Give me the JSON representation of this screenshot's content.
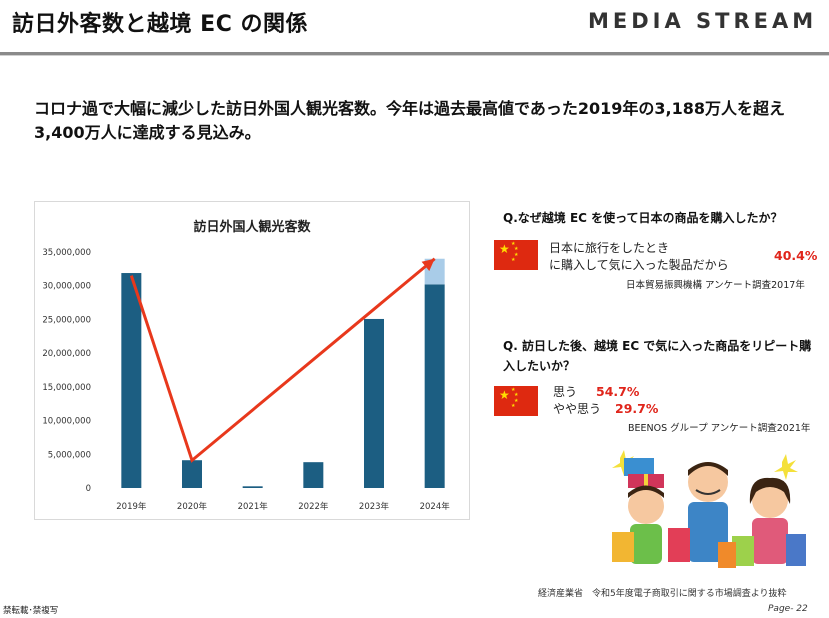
{
  "header": {
    "title": "訪日外客数と越境 EC の関係",
    "logo": "MEDIA STREAM"
  },
  "headline": "コロナ過で大幅に減少した訪日外国人観光客数。今年は過去最高値であった2019年の3,188万人を超え3,400万人に達成する見込み。",
  "chart_data": {
    "type": "bar",
    "title": "訪日外国人観光客数",
    "categories": [
      "2019年",
      "2020年",
      "2021年",
      "2022年",
      "2023年",
      "2024年"
    ],
    "series": [
      {
        "values": [
          31880000,
          4120000,
          250000,
          3830000,
          25070000,
          30200000
        ],
        "color": "#1c5e82"
      },
      {
        "values": [
          0,
          0,
          0,
          0,
          0,
          3800000
        ],
        "color": "#a9cce8"
      }
    ],
    "y_ticks": [
      "0",
      "5,000,000",
      "10,000,000",
      "15,000,000",
      "20,000,000",
      "25,000,000",
      "30,000,000",
      "35,000,000"
    ],
    "ylim": [
      0,
      35000000
    ],
    "trend_line": {
      "points": [
        31500000,
        4100000,
        34000000
      ],
      "at_categories": [
        "2019年",
        "2020年",
        "2024年"
      ],
      "color": "#e8381c"
    },
    "grid": false,
    "legend": "none"
  },
  "q1": {
    "question": "Q.なぜ越境 EC を使って日本の商品を購入したか？",
    "answer_line1": "日本に旅行をしたとき",
    "answer_line2": "に購入して気に入った製品だから",
    "percent": "40.4%",
    "source": "日本貿易振興機構 アンケート調査2017年"
  },
  "q2": {
    "question": "Q. 訪日した後、越境 EC で気に入った商品をリピート購入したいか？",
    "answer1": "思う",
    "percent1": "54.7%",
    "answer2": "やや思う",
    "percent2": "29.7%",
    "source": "BEENOS グループ アンケート調査2021年"
  },
  "footer": {
    "copyright": "禁転載･禁複写",
    "source": "経済産業省　令和5年度電子商取引に関する市場調査より抜粋",
    "page": "Page- 22"
  },
  "colors": {
    "bar": "#1c5e82",
    "bar_projection": "#a9cce8",
    "accent": "#e0251b",
    "flag": "#de2910"
  },
  "icons": [
    "china-flag-icon",
    "shopping-family-illustration"
  ]
}
